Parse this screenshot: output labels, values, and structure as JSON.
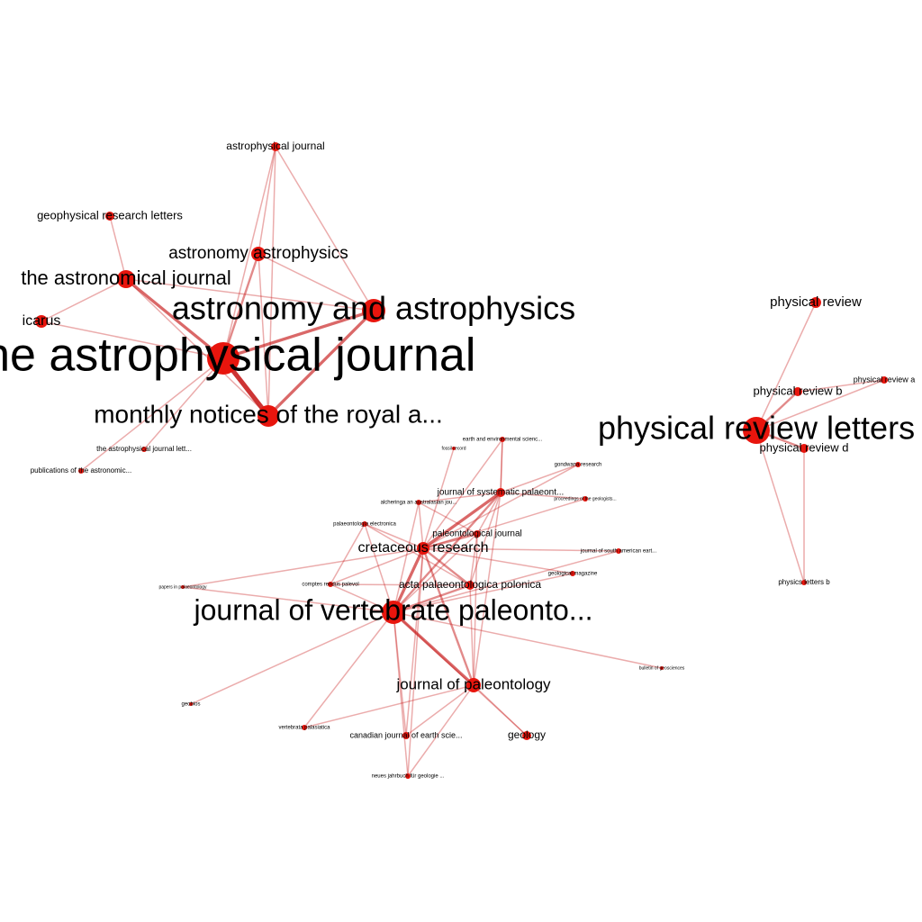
{
  "colors": {
    "node": "#e8150d",
    "edge": "#c81e1e",
    "label": "#000000",
    "background": "#ffffff"
  },
  "nodes": [
    {
      "id": "apj",
      "label": "the astrophysical journal"
    },
    {
      "id": "aa",
      "label": "astronomy and astrophysics"
    },
    {
      "id": "aa2",
      "label": "astronomy  astrophysics"
    },
    {
      "id": "mnras",
      "label": "monthly notices of the royal a..."
    },
    {
      "id": "aj",
      "label": "the astronomical journal"
    },
    {
      "id": "icarus",
      "label": "icarus"
    },
    {
      "id": "apj2",
      "label": "astrophysical journal"
    },
    {
      "id": "grl",
      "label": "geophysical research letters"
    },
    {
      "id": "apjl",
      "label": "the astrophysical journal lett..."
    },
    {
      "id": "pasp",
      "label": "publications of the astronomic..."
    },
    {
      "id": "prl",
      "label": "physical review letters"
    },
    {
      "id": "pr",
      "label": "physical review"
    },
    {
      "id": "prb",
      "label": "physical review b"
    },
    {
      "id": "pra",
      "label": "physical review a"
    },
    {
      "id": "prd",
      "label": "physical review d"
    },
    {
      "id": "plb",
      "label": "physics letters b"
    },
    {
      "id": "jvp",
      "label": "journal of vertebrate paleonto..."
    },
    {
      "id": "cr",
      "label": "cretaceous research"
    },
    {
      "id": "jp",
      "label": "journal of paleontology"
    },
    {
      "id": "app",
      "label": "acta palaeontologica polonica"
    },
    {
      "id": "pj",
      "label": "paleontological journal"
    },
    {
      "id": "jsp",
      "label": "journal of systematic palaeont..."
    },
    {
      "id": "alch",
      "label": "alcheringa an australasian jou..."
    },
    {
      "id": "pe",
      "label": "palaeontologia electronica"
    },
    {
      "id": "crp",
      "label": "comptes rendus palevol"
    },
    {
      "id": "pip",
      "label": "papers in palaeontology"
    },
    {
      "id": "ees",
      "label": "earth and environmental scienc..."
    },
    {
      "id": "fr",
      "label": "fossil record"
    },
    {
      "id": "gr",
      "label": "gondwana research"
    },
    {
      "id": "pga",
      "label": "proceedings of the geologists..."
    },
    {
      "id": "jsae",
      "label": "journal of south american eart..."
    },
    {
      "id": "gm",
      "label": "geological magazine"
    },
    {
      "id": "bg",
      "label": "bulletin of geosciences"
    },
    {
      "id": "geobios",
      "label": "geobios"
    },
    {
      "id": "va",
      "label": "vertebrata palasiatica"
    },
    {
      "id": "cjes",
      "label": "canadian journal of earth scie..."
    },
    {
      "id": "geology",
      "label": "geology"
    },
    {
      "id": "njgp",
      "label": "neues jahrbuch für geologie ..."
    }
  ],
  "edges": [
    [
      "apj",
      "aa",
      3
    ],
    [
      "apj",
      "mnras",
      5
    ],
    [
      "apj",
      "aa2",
      2
    ],
    [
      "apj",
      "aj",
      3
    ],
    [
      "apj",
      "icarus",
      1
    ],
    [
      "apj",
      "apj2",
      1
    ],
    [
      "apj",
      "apjl",
      1
    ],
    [
      "apj",
      "pasp",
      1
    ],
    [
      "aa",
      "mnras",
      3
    ],
    [
      "aa",
      "aa2",
      1
    ],
    [
      "aa",
      "aj",
      1
    ],
    [
      "aa",
      "apj2",
      1
    ],
    [
      "mnras",
      "aa2",
      1
    ],
    [
      "mnras",
      "aj",
      1
    ],
    [
      "mnras",
      "apj2",
      1
    ],
    [
      "aa2",
      "apj2",
      1
    ],
    [
      "aj",
      "grl",
      1
    ],
    [
      "aj",
      "icarus",
      1
    ],
    [
      "prl",
      "prb",
      2
    ],
    [
      "prl",
      "pr",
      1
    ],
    [
      "prl",
      "pra",
      1
    ],
    [
      "prl",
      "prd",
      2
    ],
    [
      "prd",
      "plb",
      1
    ],
    [
      "prl",
      "plb",
      1
    ],
    [
      "prb",
      "pra",
      1
    ],
    [
      "jvp",
      "cr",
      3
    ],
    [
      "jvp",
      "jp",
      3
    ],
    [
      "jvp",
      "app",
      2
    ],
    [
      "jvp",
      "pj",
      1
    ],
    [
      "jvp",
      "jsp",
      2
    ],
    [
      "jvp",
      "alch",
      1
    ],
    [
      "jvp",
      "pe",
      1
    ],
    [
      "jvp",
      "crp",
      1
    ],
    [
      "jvp",
      "pip",
      1
    ],
    [
      "jvp",
      "geobios",
      1
    ],
    [
      "jvp",
      "va",
      1
    ],
    [
      "jvp",
      "cjes",
      1
    ],
    [
      "jvp",
      "geology",
      1
    ],
    [
      "jvp",
      "bg",
      1
    ],
    [
      "jvp",
      "njgp",
      1
    ],
    [
      "jvp",
      "gm",
      1
    ],
    [
      "jvp",
      "jsae",
      1
    ],
    [
      "cr",
      "jsp",
      3
    ],
    [
      "cr",
      "pj",
      2
    ],
    [
      "cr",
      "app",
      2
    ],
    [
      "cr",
      "jp",
      2
    ],
    [
      "cr",
      "alch",
      1
    ],
    [
      "cr",
      "pe",
      1
    ],
    [
      "cr",
      "ees",
      1
    ],
    [
      "cr",
      "fr",
      1
    ],
    [
      "cr",
      "gr",
      1
    ],
    [
      "cr",
      "pga",
      1
    ],
    [
      "cr",
      "jsae",
      1
    ],
    [
      "cr",
      "gm",
      1
    ],
    [
      "cr",
      "crp",
      1
    ],
    [
      "cr",
      "pip",
      1
    ],
    [
      "cr",
      "cjes",
      1
    ],
    [
      "cr",
      "njgp",
      1
    ],
    [
      "jp",
      "app",
      1
    ],
    [
      "jp",
      "jsp",
      1
    ],
    [
      "jp",
      "pj",
      1
    ],
    [
      "jp",
      "geology",
      1
    ],
    [
      "jp",
      "cjes",
      1
    ],
    [
      "jp",
      "va",
      1
    ],
    [
      "jp",
      "njgp",
      1
    ],
    [
      "jsp",
      "pj",
      1
    ],
    [
      "jsp",
      "app",
      1
    ],
    [
      "jsp",
      "alch",
      1
    ],
    [
      "jsp",
      "ees",
      1
    ],
    [
      "jsp",
      "gr",
      1
    ],
    [
      "jsp",
      "pga",
      1
    ],
    [
      "app",
      "pj",
      1
    ],
    [
      "app",
      "pe",
      1
    ],
    [
      "app",
      "crp",
      1
    ],
    [
      "pj",
      "alch",
      1
    ],
    [
      "pe",
      "crp",
      1
    ],
    [
      "ees",
      "jsp",
      1
    ]
  ]
}
